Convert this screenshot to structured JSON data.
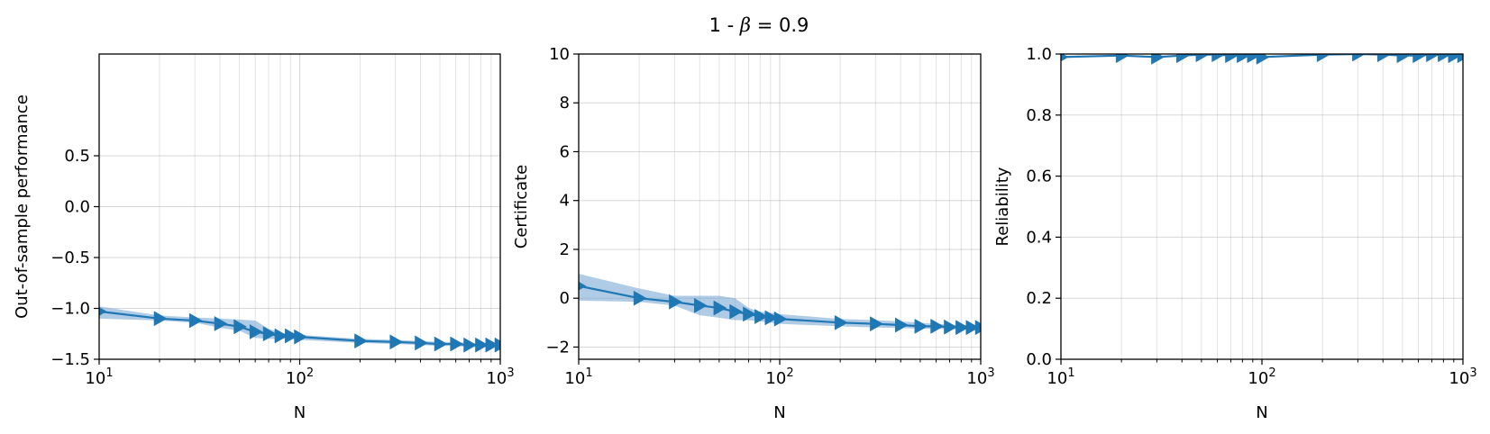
{
  "figure": {
    "title": "1 - β = 0.9"
  },
  "chart_data": [
    {
      "type": "line",
      "xlabel": "N",
      "ylabel": "Out-of-sample performance",
      "xscale": "log",
      "xlim": [
        10,
        1000
      ],
      "ylim": [
        -1.5,
        1.5
      ],
      "yticks": [
        "−1.5",
        "−1.0",
        "−0.5",
        "0.0",
        "0.5"
      ],
      "ytick_values": [
        -1.5,
        -1.0,
        -0.5,
        0.0,
        0.5
      ],
      "xticks": [
        {
          "base": "10",
          "exp": "1",
          "value": 10
        },
        {
          "base": "10",
          "exp": "2",
          "value": 100
        },
        {
          "base": "10",
          "exp": "3",
          "value": 1000
        }
      ],
      "grid": true,
      "marker": "triangle-right",
      "color": "#1f77b4",
      "band_color": "#7aa9d3",
      "x": [
        10,
        20,
        30,
        40,
        50,
        60,
        70,
        80,
        90,
        100,
        200,
        300,
        400,
        500,
        600,
        700,
        800,
        900,
        1000
      ],
      "y": [
        -1.03,
        -1.1,
        -1.12,
        -1.15,
        -1.18,
        -1.23,
        -1.25,
        -1.27,
        -1.27,
        -1.28,
        -1.32,
        -1.33,
        -1.34,
        -1.35,
        -1.35,
        -1.36,
        -1.36,
        -1.36,
        -1.36
      ],
      "y_low": [
        -1.1,
        -1.12,
        -1.14,
        -1.19,
        -1.22,
        -1.29,
        -1.3,
        -1.3,
        -1.3,
        -1.31,
        -1.34,
        -1.35,
        -1.36,
        -1.37,
        -1.37,
        -1.38,
        -1.38,
        -1.38,
        -1.38
      ],
      "y_high": [
        -0.98,
        -1.07,
        -1.09,
        -1.1,
        -1.11,
        -1.12,
        -1.2,
        -1.24,
        -1.25,
        -1.26,
        -1.3,
        -1.31,
        -1.32,
        -1.33,
        -1.33,
        -1.34,
        -1.34,
        -1.34,
        -1.34
      ]
    },
    {
      "type": "line",
      "xlabel": "N",
      "ylabel": "Certificate",
      "xscale": "log",
      "xlim": [
        10,
        1000
      ],
      "ylim": [
        -2.5,
        10
      ],
      "yticks": [
        "−2",
        "0",
        "2",
        "4",
        "6",
        "8",
        "10"
      ],
      "ytick_values": [
        -2,
        0,
        2,
        4,
        6,
        8,
        10
      ],
      "xticks": [
        {
          "base": "10",
          "exp": "1",
          "value": 10
        },
        {
          "base": "10",
          "exp": "2",
          "value": 100
        },
        {
          "base": "10",
          "exp": "3",
          "value": 1000
        }
      ],
      "grid": true,
      "marker": "triangle-right",
      "color": "#1f77b4",
      "band_color": "#7aa9d3",
      "x": [
        10,
        20,
        30,
        40,
        50,
        60,
        70,
        80,
        90,
        100,
        200,
        300,
        400,
        500,
        600,
        700,
        800,
        900,
        1000
      ],
      "y": [
        0.5,
        0.0,
        -0.15,
        -0.3,
        -0.4,
        -0.55,
        -0.65,
        -0.75,
        -0.8,
        -0.85,
        -1.0,
        -1.05,
        -1.1,
        -1.15,
        -1.15,
        -1.18,
        -1.2,
        -1.2,
        -1.2
      ],
      "y_low": [
        -0.1,
        -0.15,
        -0.3,
        -0.7,
        -0.8,
        -0.9,
        -0.9,
        -0.95,
        -1.0,
        -1.05,
        -1.15,
        -1.2,
        -1.22,
        -1.25,
        -1.25,
        -1.27,
        -1.28,
        -1.28,
        -1.28
      ],
      "y_high": [
        1.0,
        0.4,
        0.1,
        0.1,
        0.1,
        0.0,
        -0.4,
        -0.55,
        -0.6,
        -0.65,
        -0.85,
        -0.9,
        -0.95,
        -1.0,
        -1.05,
        -1.08,
        -1.1,
        -1.1,
        -1.1
      ]
    },
    {
      "type": "line",
      "xlabel": "N",
      "ylabel": "Reliability",
      "xscale": "log",
      "xlim": [
        10,
        1000
      ],
      "ylim": [
        0.0,
        1.0
      ],
      "yticks": [
        "0.0",
        "0.2",
        "0.4",
        "0.6",
        "0.8",
        "1.0"
      ],
      "ytick_values": [
        0.0,
        0.2,
        0.4,
        0.6,
        0.8,
        1.0
      ],
      "xticks": [
        {
          "base": "10",
          "exp": "1",
          "value": 10
        },
        {
          "base": "10",
          "exp": "2",
          "value": 100
        },
        {
          "base": "10",
          "exp": "3",
          "value": 1000
        }
      ],
      "grid": true,
      "marker": "triangle-right",
      "color": "#1f77b4",
      "band_color": "#7aa9d3",
      "x": [
        10,
        20,
        30,
        40,
        50,
        60,
        70,
        80,
        90,
        100,
        200,
        300,
        400,
        500,
        600,
        700,
        800,
        900,
        1000
      ],
      "y": [
        0.99,
        0.995,
        0.99,
        0.995,
        0.998,
        0.998,
        0.995,
        0.995,
        0.995,
        0.99,
        0.998,
        1.0,
        0.998,
        0.995,
        0.995,
        0.998,
        0.998,
        0.995,
        0.995
      ],
      "y_low": [
        0.99,
        0.995,
        0.99,
        0.995,
        0.998,
        0.998,
        0.995,
        0.995,
        0.995,
        0.99,
        0.998,
        1.0,
        0.998,
        0.995,
        0.995,
        0.998,
        0.998,
        0.995,
        0.995
      ],
      "y_high": [
        0.99,
        0.995,
        0.99,
        0.995,
        0.998,
        0.998,
        0.995,
        0.995,
        0.995,
        0.99,
        0.998,
        1.0,
        0.998,
        0.995,
        0.995,
        0.998,
        0.998,
        0.995,
        0.995
      ]
    }
  ]
}
